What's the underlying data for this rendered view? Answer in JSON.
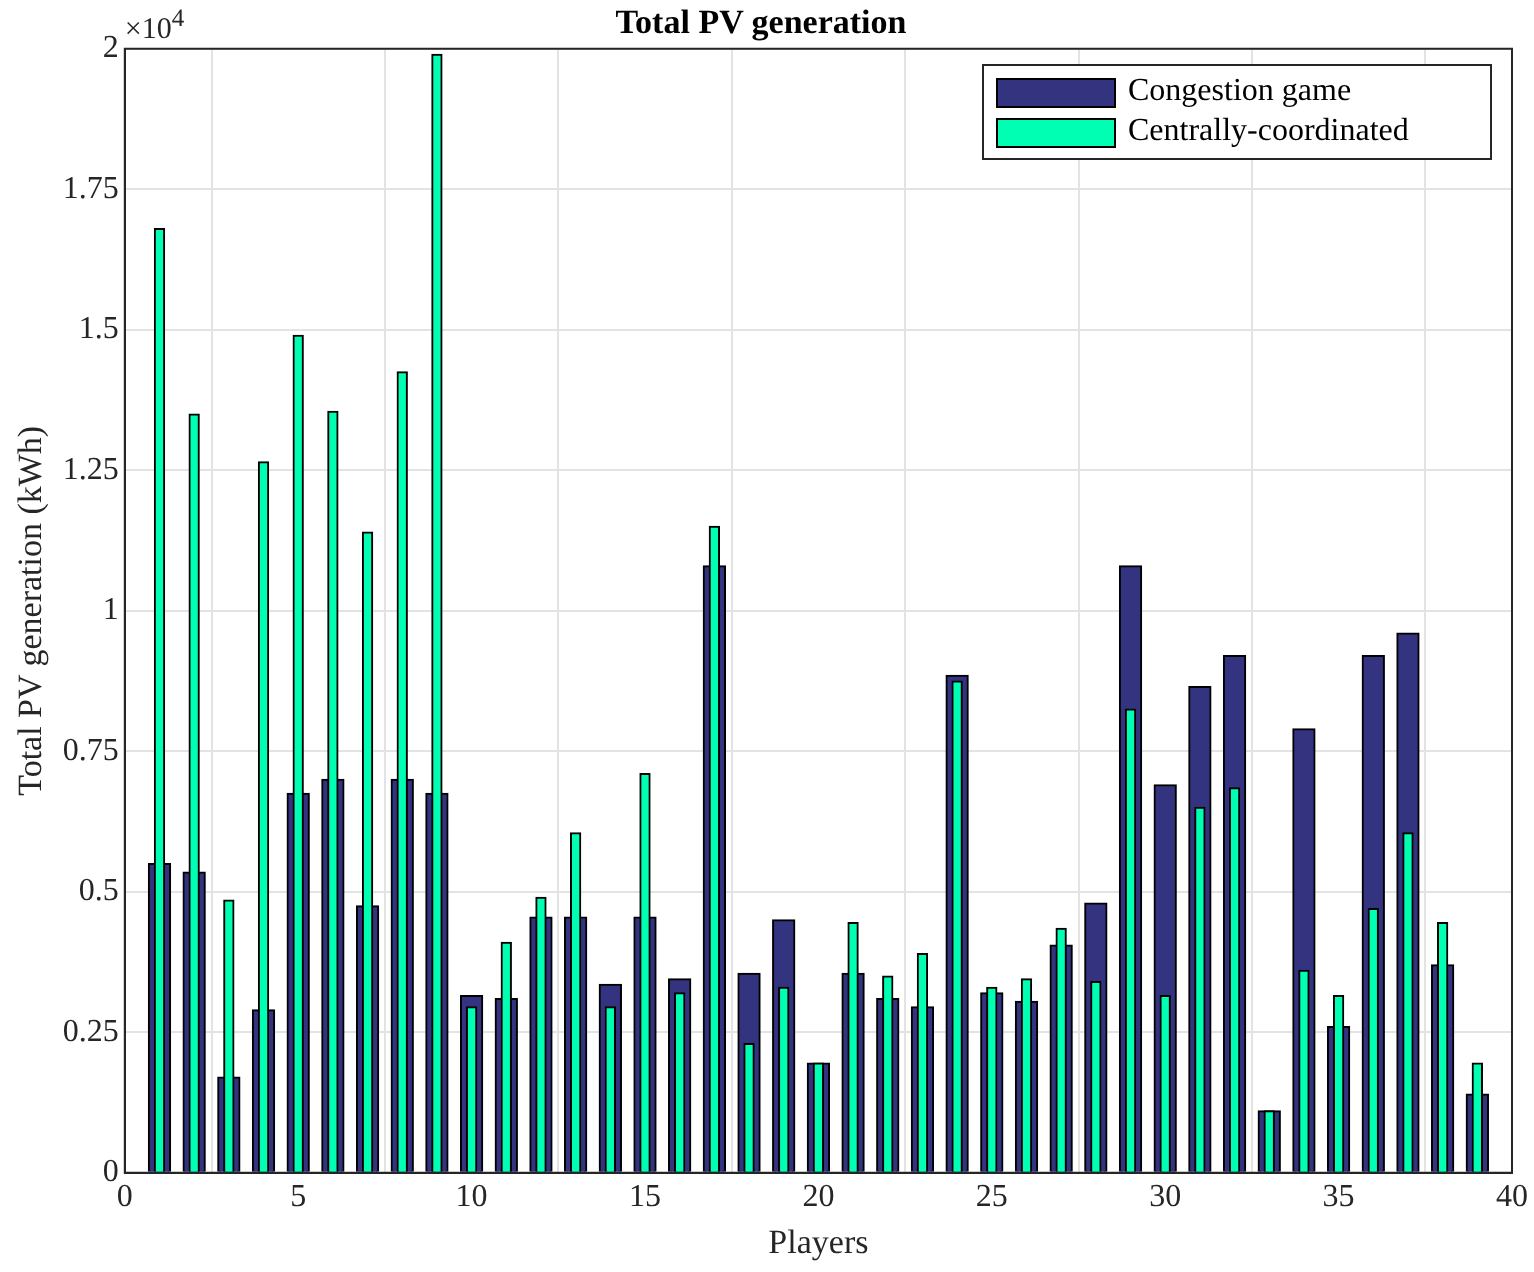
{
  "chart_data": {
    "type": "bar",
    "title": "Total PV generation",
    "xlabel": "Players",
    "ylabel": "Total PV generation (kWh)",
    "annotations": [
      "×10$^{4}$"
    ],
    "x": [
      1,
      2,
      3,
      4,
      5,
      6,
      7,
      8,
      9,
      10,
      11,
      12,
      13,
      14,
      15,
      16,
      17,
      18,
      19,
      20,
      21,
      22,
      23,
      24,
      25,
      26,
      27,
      28,
      29,
      30,
      31,
      32,
      33,
      34,
      35,
      36,
      37,
      38,
      39
    ],
    "series": [
      {
        "name": "Congestion game",
        "color": "#333380",
        "values": [
          0.55,
          0.535,
          0.17,
          0.29,
          0.675,
          0.7,
          0.475,
          0.7,
          0.675,
          0.315,
          0.31,
          0.455,
          0.455,
          0.335,
          0.455,
          0.345,
          1.08,
          0.355,
          0.45,
          0.195,
          0.355,
          0.31,
          0.295,
          0.885,
          0.32,
          0.305,
          0.405,
          0.48,
          1.08,
          0.69,
          0.865,
          0.92,
          0.11,
          0.79,
          0.26,
          0.92,
          0.96,
          0.37,
          0.14
        ]
      },
      {
        "name": "Centrally-coordinated",
        "color": "#00ffb3",
        "values": [
          1.68,
          1.35,
          0.485,
          1.265,
          1.49,
          1.355,
          1.14,
          1.425,
          1.99,
          0.295,
          0.41,
          0.49,
          0.605,
          0.295,
          0.71,
          0.32,
          1.15,
          0.23,
          0.33,
          0.195,
          0.445,
          0.35,
          0.39,
          0.875,
          0.33,
          0.345,
          0.435,
          0.34,
          0.825,
          0.315,
          0.65,
          0.685,
          0.11,
          0.36,
          0.315,
          0.47,
          0.605,
          0.445,
          0.195
        ]
      }
    ],
    "xlim": [
      0,
      40
    ],
    "xticks": [
      0,
      5,
      10,
      15,
      20,
      25,
      30,
      35,
      40
    ],
    "ylim": [
      0,
      2
    ],
    "yticks": [
      0,
      0.25,
      0.5,
      0.75,
      1,
      1.25,
      1.5,
      1.75,
      2
    ],
    "grid": true,
    "legend": "top right"
  }
}
